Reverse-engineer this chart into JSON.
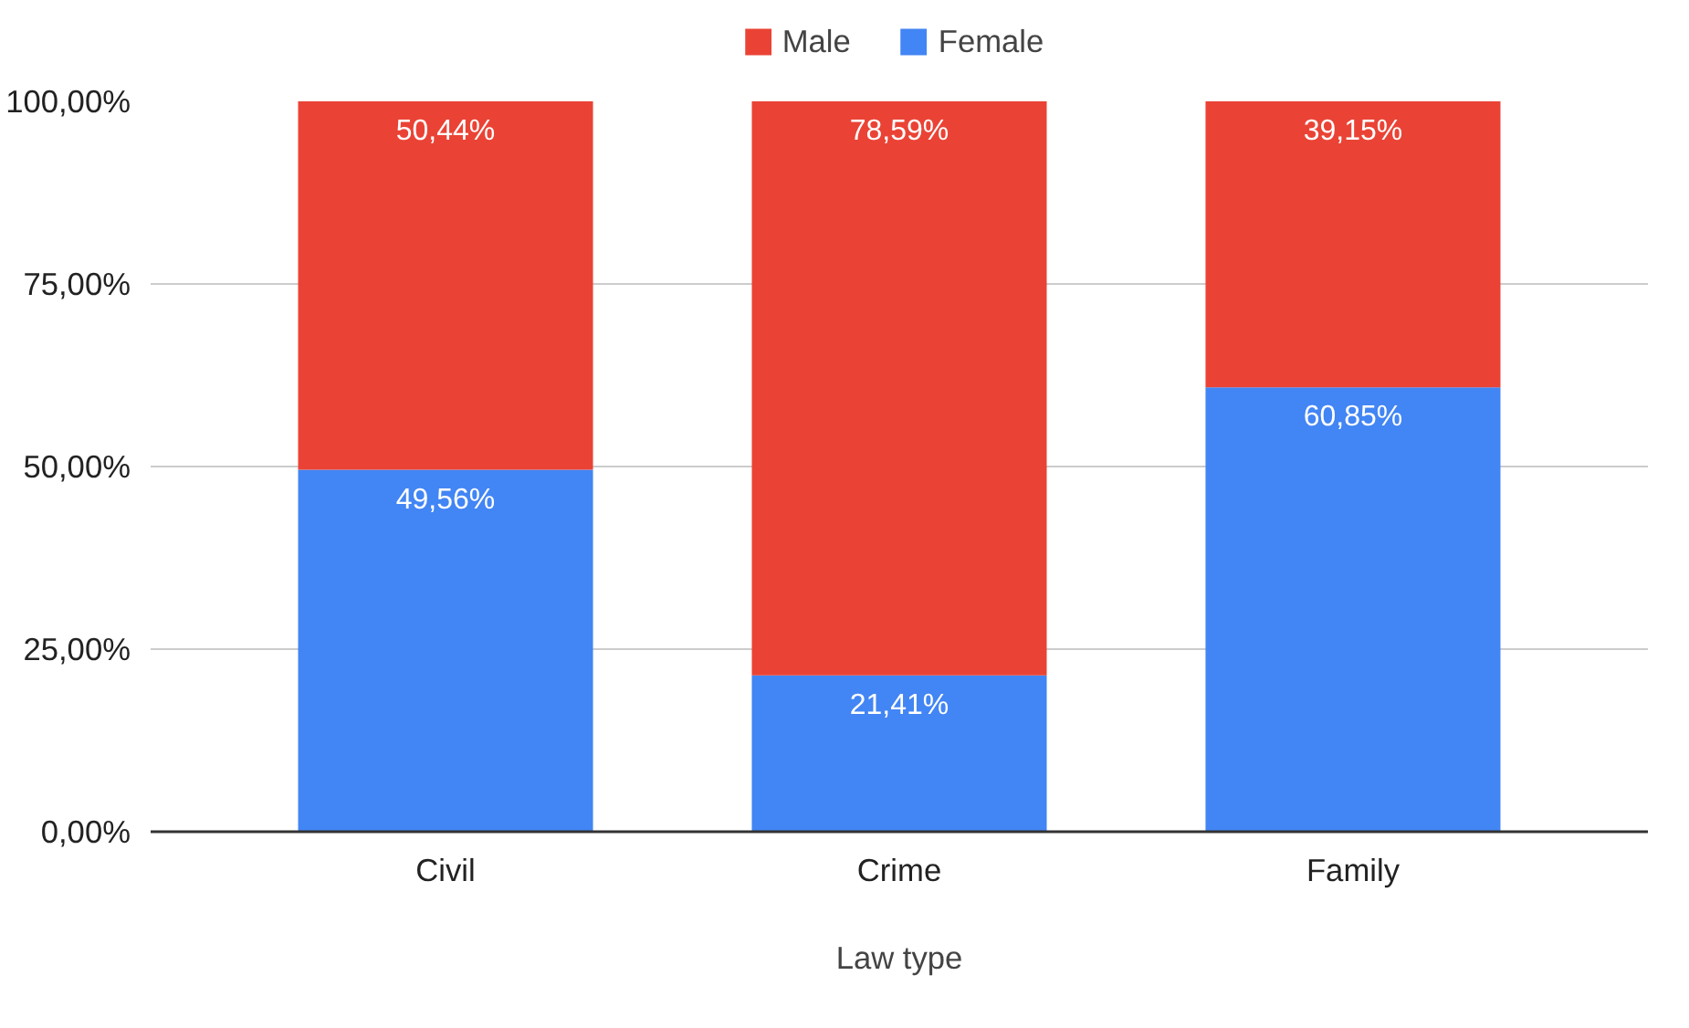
{
  "chart_data": {
    "type": "bar",
    "stacked": true,
    "xlabel": "Law type",
    "categories": [
      "Civil",
      "Crime",
      "Family"
    ],
    "series": [
      {
        "name": "Female",
        "color": "#4285f4",
        "values": [
          49.56,
          21.41,
          60.85
        ],
        "value_labels": [
          "49,56%",
          "21,41%",
          "60,85%"
        ]
      },
      {
        "name": "Male",
        "color": "#ea4335",
        "values": [
          50.44,
          78.59,
          39.15
        ],
        "value_labels": [
          "50,44%",
          "78,59%",
          "39,15%"
        ]
      }
    ],
    "ylim": [
      0,
      100
    ],
    "yticks": [
      {
        "value": 0,
        "label": "0,00%"
      },
      {
        "value": 25,
        "label": "25,00%"
      },
      {
        "value": 50,
        "label": "50,00%"
      },
      {
        "value": 75,
        "label": "75,00%"
      },
      {
        "value": 100,
        "label": "100,00%"
      }
    ],
    "grid": "y",
    "legend": "top"
  }
}
